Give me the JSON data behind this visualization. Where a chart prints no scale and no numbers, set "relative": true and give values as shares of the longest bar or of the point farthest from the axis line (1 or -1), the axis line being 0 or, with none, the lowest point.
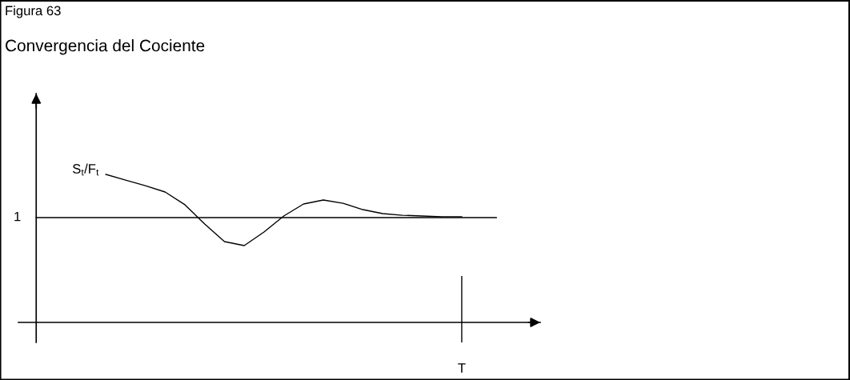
{
  "chart_data": {
    "type": "line",
    "title": "Figura 63",
    "subtitle": "Convergencia del Cociente",
    "relative": true,
    "categories": [
      null,
      null,
      null,
      null,
      null,
      null,
      null,
      null,
      null,
      null,
      null,
      null,
      null,
      null,
      null,
      null,
      null,
      null,
      null
    ],
    "annotations": [
      "T"
    ],
    "series": [
      {
        "name": "S$_{t}$/F$_{t}$",
        "color": "#000000",
        "values": [
          1.0,
          0.962,
          0.924,
          0.881,
          0.795,
          0.665,
          0.546,
          0.519,
          0.611,
          0.719,
          0.8,
          0.827,
          0.805,
          0.762,
          0.735,
          0.724,
          0.719,
          0.714,
          0.714
        ]
      }
    ],
    "ref_lines": [
      {
        "axis": "y",
        "value": 0.708,
        "label": "1",
        "color": "#000000"
      }
    ],
    "legend": false,
    "marker": "none",
    "line_style": "solid"
  }
}
